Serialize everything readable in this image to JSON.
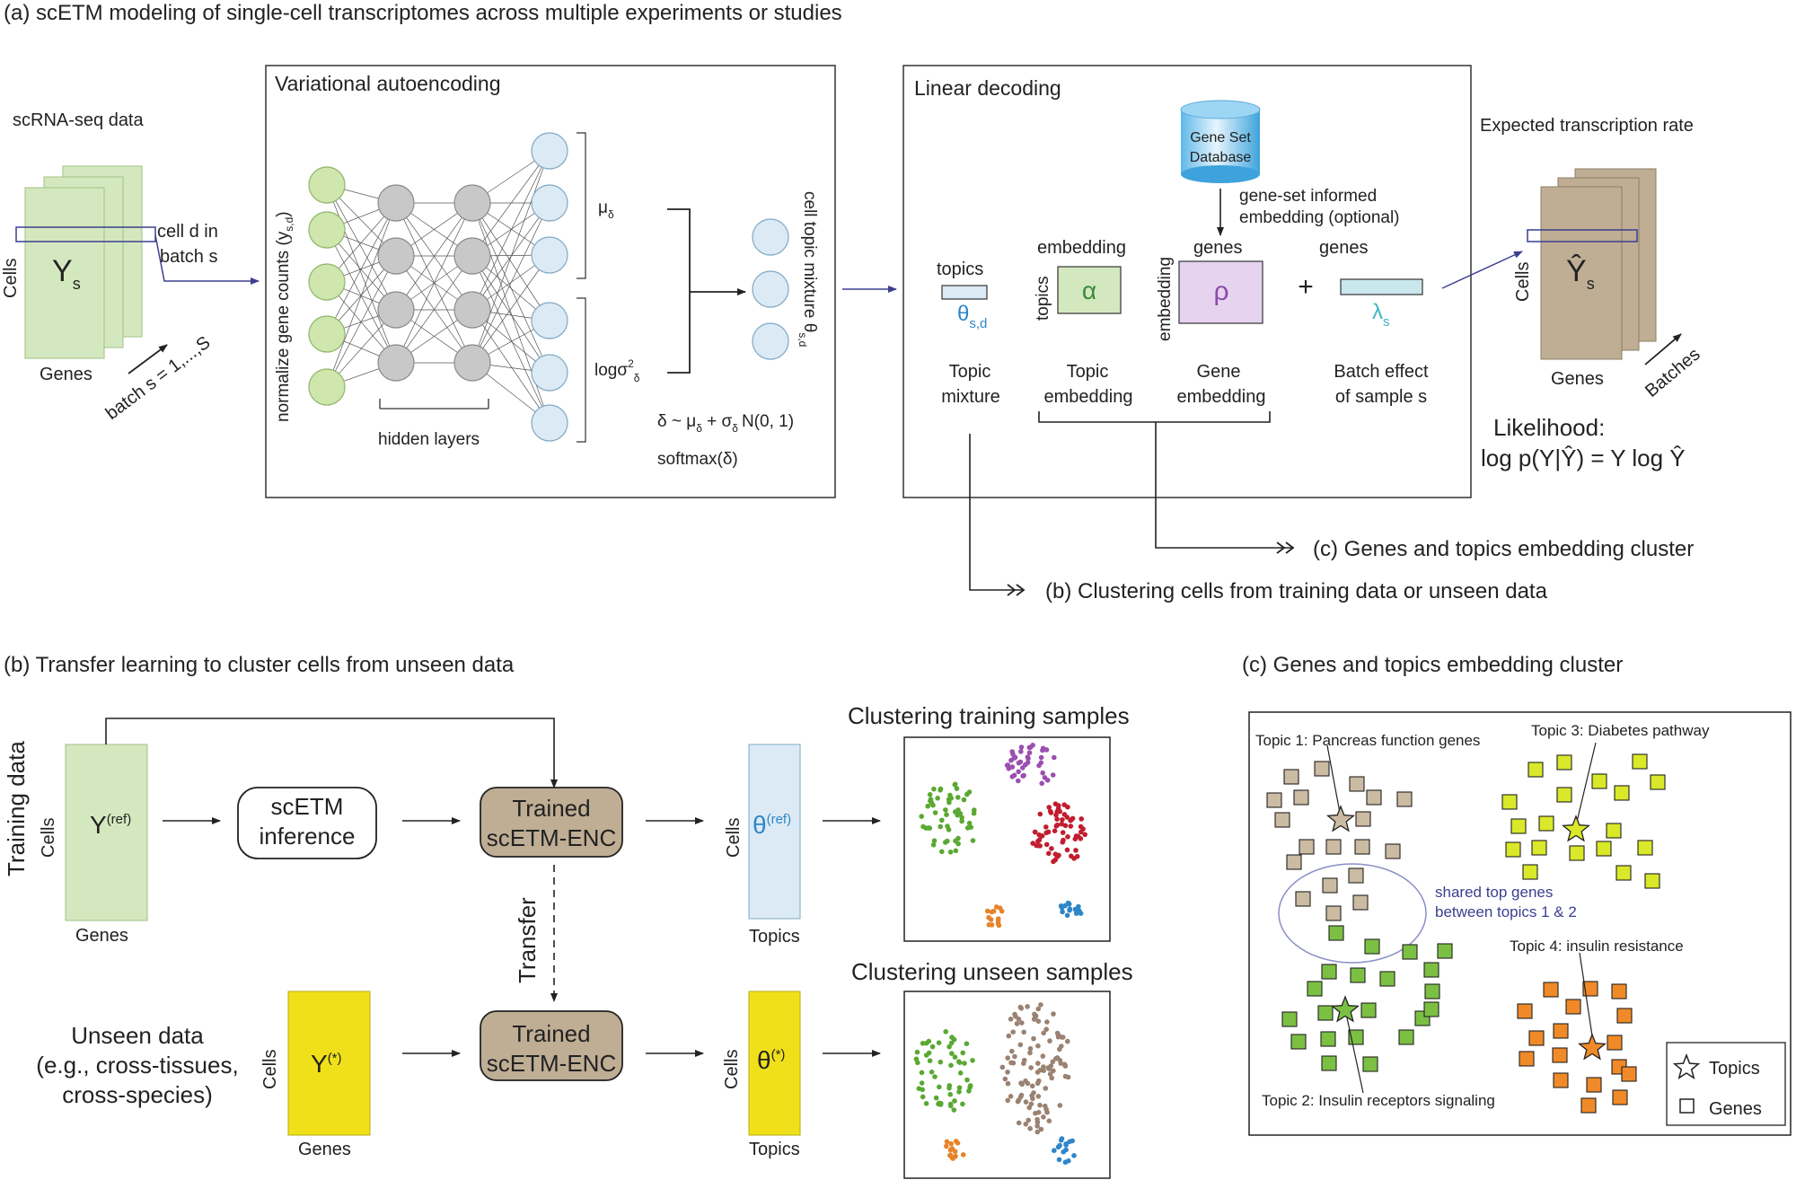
{
  "panel_a": {
    "title": "(a) scETM modeling of single-cell transcriptomes across multiple experiments or studies",
    "scrna_label": "scRNA-seq data",
    "matrix_letter": "Y",
    "matrix_sub": "s",
    "cells_label": "Cells",
    "genes_label": "Genes",
    "cell_d_line1": "cell d in",
    "cell_d_line2": "batch s",
    "batch_label": "batch s = 1,...,S",
    "vae_title": "Variational autoencoding",
    "normalize_label": "normalize gene counts (y",
    "normalize_sub": "s,d",
    "normalize_close": ")",
    "hidden_layers": "hidden layers",
    "mu": "μ",
    "mu_sub": "δ",
    "logsigma": "logσ",
    "logsigma_sup": "2",
    "logsigma_sub": "δ",
    "cell_topic_label": "cell topic mixture θ",
    "cell_topic_sub": "s,d",
    "delta_eq": "δ ~ μ",
    "delta_eq_sub1": "δ",
    "delta_eq_mid": " + σ",
    "delta_eq_sub2": "δ",
    "delta_eq_end": "N(0, 1)",
    "softmax": "softmax(δ)",
    "decoder_title": "Linear decoding",
    "gene_set_db_line1": "Gene Set",
    "gene_set_db_line2": "Database",
    "gene_set_informed_line1": "gene-set informed",
    "gene_set_informed_line2": "embedding (optional)",
    "topics_label": "topics",
    "theta": "θ",
    "theta_sub": "s,d",
    "embedding_label": "embedding",
    "topics_vertical": "topics",
    "alpha": "α",
    "embedding_vertical": "embedding",
    "genes_label_rho": "genes",
    "rho": "ρ",
    "plus": "+",
    "genes_label_lambda": "genes",
    "lambda": "λ",
    "lambda_sub": "s",
    "topic_mixture_line1": "Topic",
    "topic_mixture_line2": "mixture",
    "topic_embedding_line1": "Topic",
    "topic_embedding_line2": "embedding",
    "gene_embedding_line1": "Gene",
    "gene_embedding_line2": "embedding",
    "batch_effect_line1": "Batch effect",
    "batch_effect_line2": "of sample s",
    "expected_rate": "Expected transcription rate",
    "yhat": "Ŷ",
    "yhat_sub": "s",
    "cells_label2": "Cells",
    "genes_label2": "Genes",
    "batches_label": "Batches",
    "likelihood_label": "Likelihood:",
    "likelihood_eq": "log p(Y|Ŷ) = Y log Ŷ",
    "arrow_c_label": "(c) Genes and topics embedding cluster",
    "arrow_b_label": "(b) Clustering cells from training data or unseen data"
  },
  "panel_b": {
    "title": "(b) Transfer learning to cluster cells from unseen data",
    "training_data": "Training data",
    "cells": "Cells",
    "genes": "Genes",
    "y_ref": "Y",
    "y_ref_sup": "(ref)",
    "scetm_inference_line1": "scETM",
    "scetm_inference_line2": "inference",
    "trained_line1": "Trained",
    "trained_line2": "scETM-ENC",
    "transfer": "Transfer",
    "theta": "θ",
    "theta_ref_sup": "(ref)",
    "topics": "Topics",
    "clustering_training": "Clustering training samples",
    "unseen_line1": "Unseen data",
    "unseen_line2": "(e.g., cross-tissues,",
    "unseen_line3": "cross-species)",
    "y_star": "Y",
    "y_star_sup": "(*)",
    "theta_star_sup": "(*)",
    "clustering_unseen": "Clustering unseen samples"
  },
  "panel_c": {
    "title": "(c) Genes and topics embedding cluster",
    "topic1": "Topic 1: Pancreas function genes",
    "topic2": "Topic 2: Insulin receptors signaling",
    "topic3": "Topic 3: Diabetes pathway",
    "topic4": "Topic 4: insulin resistance",
    "shared_line1": "shared top genes",
    "shared_line2": "between topics 1 & 2",
    "legend_topics": "Topics",
    "legend_genes": "Genes"
  },
  "colors": {
    "green_matrix": "#d4e8bf",
    "tan_matrix": "#bfae94",
    "yellow_matrix": "#f0e01a",
    "blue_node": "#dceaf5",
    "green_node": "#cfe6ad",
    "gray_node": "#c8c8c8",
    "encoder_fill": "#bfae94",
    "navy_line": "#3b3f8f",
    "cluster_green": "#5aa832",
    "cluster_purple": "#9b4fb0",
    "cluster_red": "#c11d2e",
    "cluster_orange": "#e6832a",
    "cluster_blue": "#2e86c8",
    "cluster_brown": "#9a8272",
    "gene_tan": "#cbbba2",
    "gene_yellow": "#d9e829",
    "gene_green": "#7bc043",
    "gene_orange": "#f08a28"
  }
}
